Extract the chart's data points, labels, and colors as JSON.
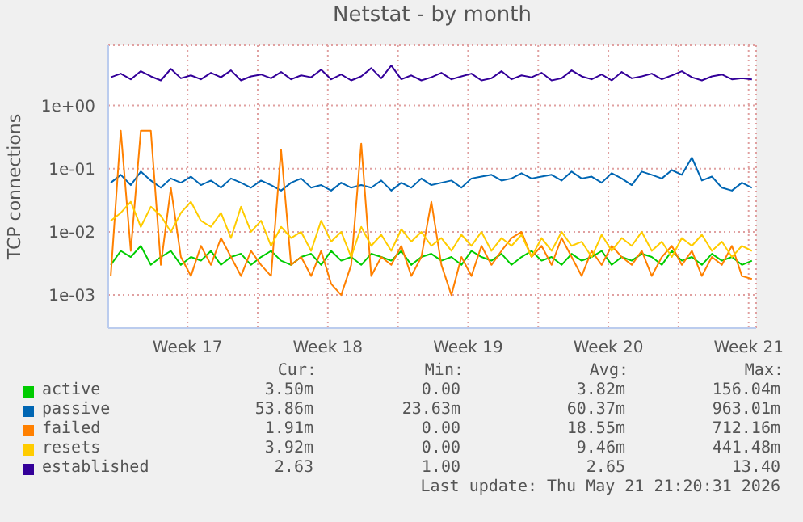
{
  "chart_data": {
    "type": "line",
    "title": "Netstat - by month",
    "ylabel": "TCP connections",
    "log": "y",
    "grid": true,
    "legend": "bottom",
    "xlim": [
      "2026-04-19T13:00",
      "2026-05-21T21:00"
    ],
    "xticks": [
      {
        "value": "2026-04-23T12:00",
        "label": "Week 17"
      },
      {
        "value": "2026-04-27T00:00",
        "label": null
      },
      {
        "value": "2026-04-30T12:00",
        "label": "Week 18"
      },
      {
        "value": "2026-05-04T00:00",
        "label": null
      },
      {
        "value": "2026-05-07T12:00",
        "label": "Week 19"
      },
      {
        "value": "2026-05-11T00:00",
        "label": null
      },
      {
        "value": "2026-05-14T12:00",
        "label": "Week 20"
      },
      {
        "value": "2026-05-18T00:00",
        "label": null
      },
      {
        "value": "2026-05-21T12:00",
        "label": "Week 21"
      }
    ],
    "ylim": [
      0.0003,
      9
    ],
    "yticks": [
      {
        "value": 0.001,
        "label": "1e-03"
      },
      {
        "value": 0.01,
        "label": "1e-02"
      },
      {
        "value": 0.1,
        "label": "1e-01"
      },
      {
        "value": 1,
        "label": "1e+00"
      }
    ],
    "x": [
      "2026-04-19T16:00",
      "2026-04-20T04:00",
      "2026-04-20T16:00",
      "2026-04-21T04:00",
      "2026-04-21T16:00",
      "2026-04-22T04:00",
      "2026-04-22T16:00",
      "2026-04-23T04:00",
      "2026-04-23T16:00",
      "2026-04-24T04:00",
      "2026-04-24T16:00",
      "2026-04-25T04:00",
      "2026-04-25T16:00",
      "2026-04-26T04:00",
      "2026-04-26T16:00",
      "2026-04-27T04:00",
      "2026-04-27T16:00",
      "2026-04-28T04:00",
      "2026-04-28T16:00",
      "2026-04-29T04:00",
      "2026-04-29T16:00",
      "2026-04-30T04:00",
      "2026-04-30T16:00",
      "2026-05-01T04:00",
      "2026-05-01T16:00",
      "2026-05-02T04:00",
      "2026-05-02T16:00",
      "2026-05-03T04:00",
      "2026-05-03T16:00",
      "2026-05-04T04:00",
      "2026-05-04T16:00",
      "2026-05-05T04:00",
      "2026-05-05T16:00",
      "2026-05-06T04:00",
      "2026-05-06T16:00",
      "2026-05-07T04:00",
      "2026-05-07T16:00",
      "2026-05-08T04:00",
      "2026-05-08T16:00",
      "2026-05-09T04:00",
      "2026-05-09T16:00",
      "2026-05-10T04:00",
      "2026-05-10T16:00",
      "2026-05-11T04:00",
      "2026-05-11T16:00",
      "2026-05-12T04:00",
      "2026-05-12T16:00",
      "2026-05-13T04:00",
      "2026-05-13T16:00",
      "2026-05-14T04:00",
      "2026-05-14T16:00",
      "2026-05-15T04:00",
      "2026-05-15T16:00",
      "2026-05-16T04:00",
      "2026-05-16T16:00",
      "2026-05-17T04:00",
      "2026-05-17T16:00",
      "2026-05-18T04:00",
      "2026-05-18T16:00",
      "2026-05-19T04:00",
      "2026-05-19T16:00",
      "2026-05-20T04:00",
      "2026-05-20T16:00",
      "2026-05-21T04:00",
      "2026-05-21T16:00"
    ],
    "series": [
      {
        "name": "active",
        "color": "#00cc00",
        "values": [
          0.003,
          0.005,
          0.004,
          0.006,
          0.003,
          0.004,
          0.005,
          0.003,
          0.004,
          0.0035,
          0.005,
          0.003,
          0.004,
          0.0045,
          0.003,
          0.004,
          0.005,
          0.0035,
          0.003,
          0.004,
          0.0045,
          0.003,
          0.005,
          0.0035,
          0.004,
          0.003,
          0.0045,
          0.004,
          0.0035,
          0.005,
          0.003,
          0.004,
          0.0045,
          0.0035,
          0.004,
          0.003,
          0.005,
          0.004,
          0.0035,
          0.0045,
          0.003,
          0.004,
          0.005,
          0.0035,
          0.004,
          0.003,
          0.0045,
          0.0035,
          0.004,
          0.005,
          0.003,
          0.004,
          0.0035,
          0.0045,
          0.004,
          0.003,
          0.005,
          0.0035,
          0.004,
          0.003,
          0.0045,
          0.0035,
          0.004,
          0.003,
          0.0035
        ]
      },
      {
        "name": "passive",
        "color": "#0066b3",
        "values": [
          0.06,
          0.08,
          0.055,
          0.09,
          0.065,
          0.05,
          0.07,
          0.06,
          0.075,
          0.055,
          0.065,
          0.05,
          0.07,
          0.06,
          0.05,
          0.065,
          0.055,
          0.045,
          0.06,
          0.07,
          0.05,
          0.055,
          0.045,
          0.06,
          0.05,
          0.055,
          0.05,
          0.065,
          0.045,
          0.06,
          0.05,
          0.07,
          0.055,
          0.06,
          0.065,
          0.05,
          0.07,
          0.075,
          0.08,
          0.065,
          0.07,
          0.085,
          0.07,
          0.075,
          0.08,
          0.065,
          0.09,
          0.07,
          0.075,
          0.06,
          0.085,
          0.07,
          0.055,
          0.09,
          0.08,
          0.07,
          0.095,
          0.08,
          0.15,
          0.065,
          0.075,
          0.05,
          0.045,
          0.06,
          0.05
        ]
      },
      {
        "name": "failed",
        "color": "#ff8000",
        "values": [
          0.002,
          0.4,
          0.005,
          0.4,
          0.4,
          0.003,
          0.05,
          0.004,
          0.002,
          0.006,
          0.003,
          0.008,
          0.004,
          0.002,
          0.005,
          0.003,
          0.002,
          0.2,
          0.003,
          0.004,
          0.002,
          0.005,
          0.0015,
          0.001,
          0.003,
          0.25,
          0.002,
          0.004,
          0.003,
          0.006,
          0.002,
          0.004,
          0.03,
          0.003,
          0.001,
          0.004,
          0.002,
          0.006,
          0.003,
          0.005,
          0.008,
          0.01,
          0.004,
          0.006,
          0.003,
          0.008,
          0.004,
          0.002,
          0.005,
          0.003,
          0.006,
          0.004,
          0.003,
          0.005,
          0.002,
          0.004,
          0.006,
          0.003,
          0.005,
          0.002,
          0.004,
          0.003,
          0.006,
          0.002,
          0.0018
        ]
      },
      {
        "name": "resets",
        "color": "#ffcc00",
        "values": [
          0.015,
          0.02,
          0.03,
          0.012,
          0.025,
          0.018,
          0.01,
          0.02,
          0.03,
          0.015,
          0.012,
          0.02,
          0.008,
          0.025,
          0.01,
          0.015,
          0.006,
          0.012,
          0.008,
          0.01,
          0.005,
          0.015,
          0.007,
          0.01,
          0.004,
          0.012,
          0.006,
          0.009,
          0.005,
          0.011,
          0.007,
          0.01,
          0.006,
          0.008,
          0.005,
          0.009,
          0.006,
          0.01,
          0.005,
          0.008,
          0.006,
          0.009,
          0.004,
          0.008,
          0.005,
          0.01,
          0.006,
          0.007,
          0.004,
          0.009,
          0.005,
          0.008,
          0.006,
          0.01,
          0.005,
          0.007,
          0.004,
          0.008,
          0.006,
          0.009,
          0.005,
          0.007,
          0.004,
          0.006,
          0.005
        ]
      },
      {
        "name": "established",
        "color": "#330099",
        "values": [
          2.8,
          3.2,
          2.6,
          3.5,
          2.9,
          2.5,
          3.8,
          2.7,
          3.0,
          2.6,
          3.3,
          2.8,
          3.6,
          2.5,
          2.9,
          3.1,
          2.7,
          3.4,
          2.6,
          3.0,
          2.8,
          3.7,
          2.6,
          3.1,
          2.5,
          2.9,
          3.9,
          2.7,
          4.3,
          2.6,
          3.0,
          2.5,
          2.8,
          3.3,
          2.6,
          2.9,
          3.2,
          2.5,
          2.7,
          3.5,
          2.6,
          3.0,
          2.8,
          3.3,
          2.5,
          2.7,
          3.6,
          2.9,
          2.6,
          3.1,
          2.5,
          3.4,
          2.7,
          2.9,
          3.2,
          2.6,
          3.0,
          3.5,
          2.8,
          2.5,
          2.9,
          3.1,
          2.6,
          2.7,
          2.6
        ]
      }
    ],
    "annotations": [
      "Cur:",
      "Min:",
      "Avg:",
      "Max:",
      "3.50m",
      "0.00",
      "3.82m",
      "156.04m",
      "53.86m",
      "23.63m",
      "60.37m",
      "963.01m",
      "1.91m",
      "0.00",
      "18.55m",
      "712.16m",
      "3.92m",
      "0.00",
      "9.46m",
      "441.48m",
      "2.63",
      "1.00",
      "2.65",
      "13.40",
      "Last update: Thu May 21 21:20:31 2026"
    ]
  }
}
